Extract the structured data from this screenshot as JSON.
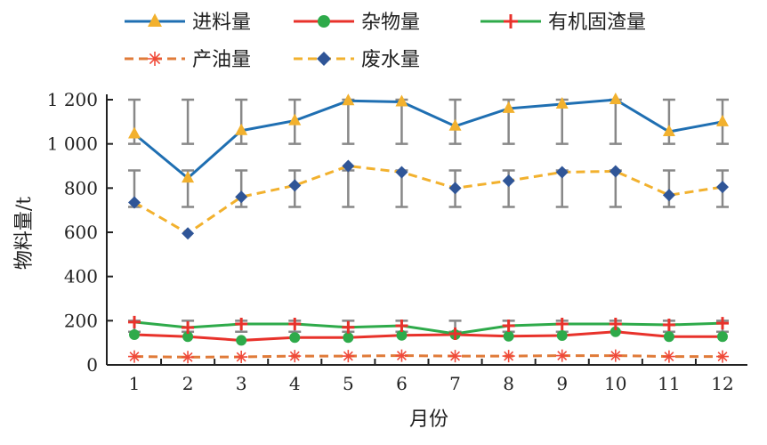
{
  "chart_data": {
    "type": "line",
    "xlabel": "月份",
    "ylabel": "物料量/t",
    "x": [
      1,
      2,
      3,
      4,
      5,
      6,
      7,
      8,
      9,
      10,
      11,
      12
    ],
    "ylim": [
      0,
      1200
    ],
    "yticks": [
      0,
      200,
      400,
      600,
      800,
      1000,
      1200
    ],
    "ytick_labels": [
      "0",
      "200",
      "400",
      "600",
      "800",
      "1 000",
      "1 200"
    ],
    "grid": false,
    "legend_position": "top",
    "series": [
      {
        "name": "进料量",
        "color": "#1f6fb2",
        "marker": "triangle",
        "marker_color": "#f2b12e",
        "dash": false,
        "values": [
          1045,
          845,
          1060,
          1105,
          1195,
          1190,
          1080,
          1160,
          1180,
          1200,
          1055,
          1100
        ],
        "error_range": [
          1000,
          1200
        ]
      },
      {
        "name": "杂物量",
        "color": "#e8322b",
        "marker": "circle",
        "marker_color": "#2eaa4a",
        "dash": false,
        "values": [
          137,
          128,
          111,
          124,
          124,
          134,
          137,
          130,
          133,
          150,
          128,
          128
        ]
      },
      {
        "name": "有机固渣量",
        "color": "#2eaa4a",
        "marker": "plus",
        "marker_color": "#e8322b",
        "dash": false,
        "values": [
          194,
          169,
          185,
          185,
          170,
          177,
          141,
          177,
          185,
          185,
          181,
          189
        ],
        "error_range": [
          150,
          200
        ]
      },
      {
        "name": "产油量",
        "color": "#e07b39",
        "marker": "star",
        "marker_color": "#f04a3a",
        "dash": true,
        "values": [
          38,
          35,
          36,
          40,
          40,
          42,
          40,
          40,
          42,
          42,
          38,
          38
        ]
      },
      {
        "name": "废水量",
        "color": "#f2b12e",
        "marker": "diamond",
        "marker_color": "#2f5597",
        "dash": true,
        "values": [
          735,
          595,
          760,
          812,
          900,
          872,
          800,
          833,
          872,
          876,
          768,
          805
        ],
        "error_range": [
          715,
          880
        ]
      }
    ]
  }
}
